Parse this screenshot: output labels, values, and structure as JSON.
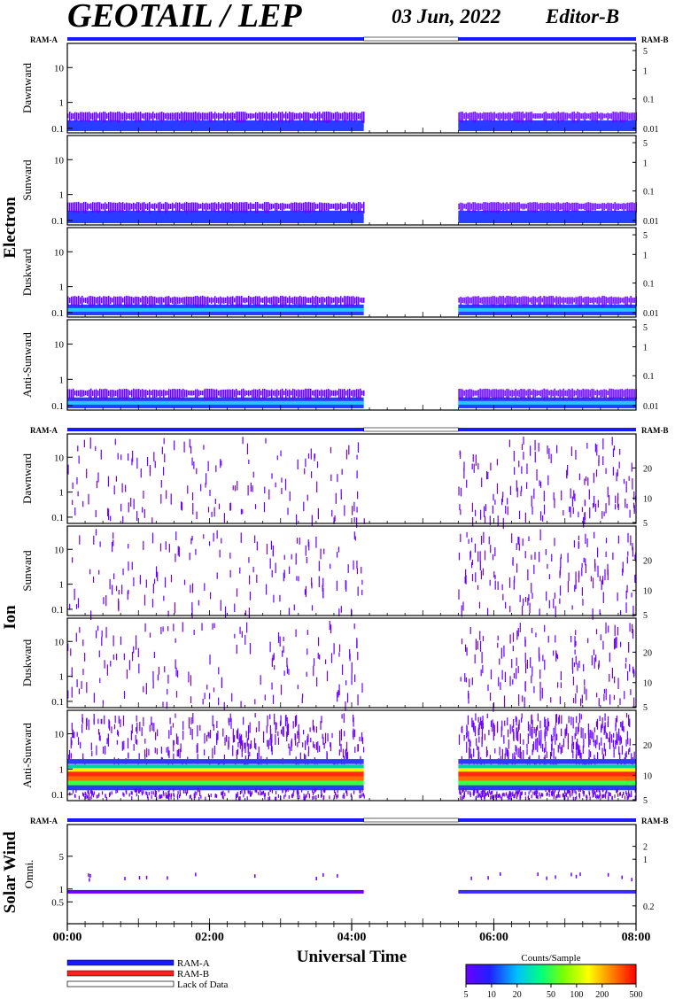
{
  "header": {
    "title": "GEOTAIL / LEP",
    "date": "03 Jun, 2022",
    "editor": "Editor-B"
  },
  "colors": {
    "ram_a": "#1a1aff",
    "ram_b": "#ff2020",
    "lack_of_data": "#ffffff",
    "spectrogram_low": "#6a00ff"
  },
  "chart_data": {
    "type": "heatmap",
    "x_axis": {
      "label": "Universal Time",
      "ticks": [
        "00:00",
        "02:00",
        "04:00",
        "06:00",
        "08:00"
      ],
      "range_hours": [
        0,
        8
      ]
    },
    "data_gap_hours": [
      4.17,
      5.5
    ],
    "groups": [
      {
        "name": "Electron",
        "ram_labels": [
          "RAM-A",
          "RAM-B"
        ],
        "panels": [
          {
            "name": "Dawnward",
            "left_ticks": [
              "10",
              "1",
              "0.1"
            ],
            "right_ticks": [
              "5",
              "1",
              "0.1",
              "0.01"
            ]
          },
          {
            "name": "Sunward",
            "left_ticks": [
              "10",
              "1",
              "0.1"
            ],
            "right_ticks": [
              "5",
              "1",
              "0.1",
              "0.01"
            ]
          },
          {
            "name": "Duskward",
            "left_ticks": [
              "10",
              "1",
              "0.1"
            ],
            "right_ticks": [
              "5",
              "1",
              "0.1",
              "0.01"
            ]
          },
          {
            "name": "Anti-Sunward",
            "left_ticks": [
              "10",
              "1",
              "0.1"
            ],
            "right_ticks": [
              "5",
              "1",
              "0.1",
              "0.01"
            ]
          }
        ]
      },
      {
        "name": "Ion",
        "ram_labels": [
          "RAM-A",
          "RAM-B"
        ],
        "panels": [
          {
            "name": "Dawnward",
            "left_ticks": [
              "10",
              "1",
              "0.1"
            ],
            "right_ticks": [
              "20",
              "10",
              "5"
            ]
          },
          {
            "name": "Sunward",
            "left_ticks": [
              "10",
              "1",
              "0.1"
            ],
            "right_ticks": [
              "20",
              "10",
              "5"
            ]
          },
          {
            "name": "Duskward",
            "left_ticks": [
              "10",
              "1",
              "0.1"
            ],
            "right_ticks": [
              "20",
              "10",
              "5"
            ]
          },
          {
            "name": "Anti-Sunward",
            "left_ticks": [
              "10",
              "1",
              "0.1"
            ],
            "right_ticks": [
              "20",
              "10",
              "5"
            ]
          }
        ]
      },
      {
        "name": "Solar Wind",
        "ram_labels": [
          "RAM-A",
          "RAM-B"
        ],
        "panels": [
          {
            "name": "Omni.",
            "left_ticks": [
              "5",
              "1",
              "0.5"
            ],
            "right_ticks": [
              "2",
              "1",
              "0.2"
            ]
          }
        ]
      }
    ],
    "legend": {
      "items": [
        "RAM-A",
        "RAM-B",
        "Lack of Data"
      ]
    },
    "colorbar": {
      "title": "Counts/Sample",
      "ticks": [
        "5",
        "10",
        "20",
        "50",
        "100",
        "200",
        "500"
      ],
      "scale": "log"
    }
  }
}
